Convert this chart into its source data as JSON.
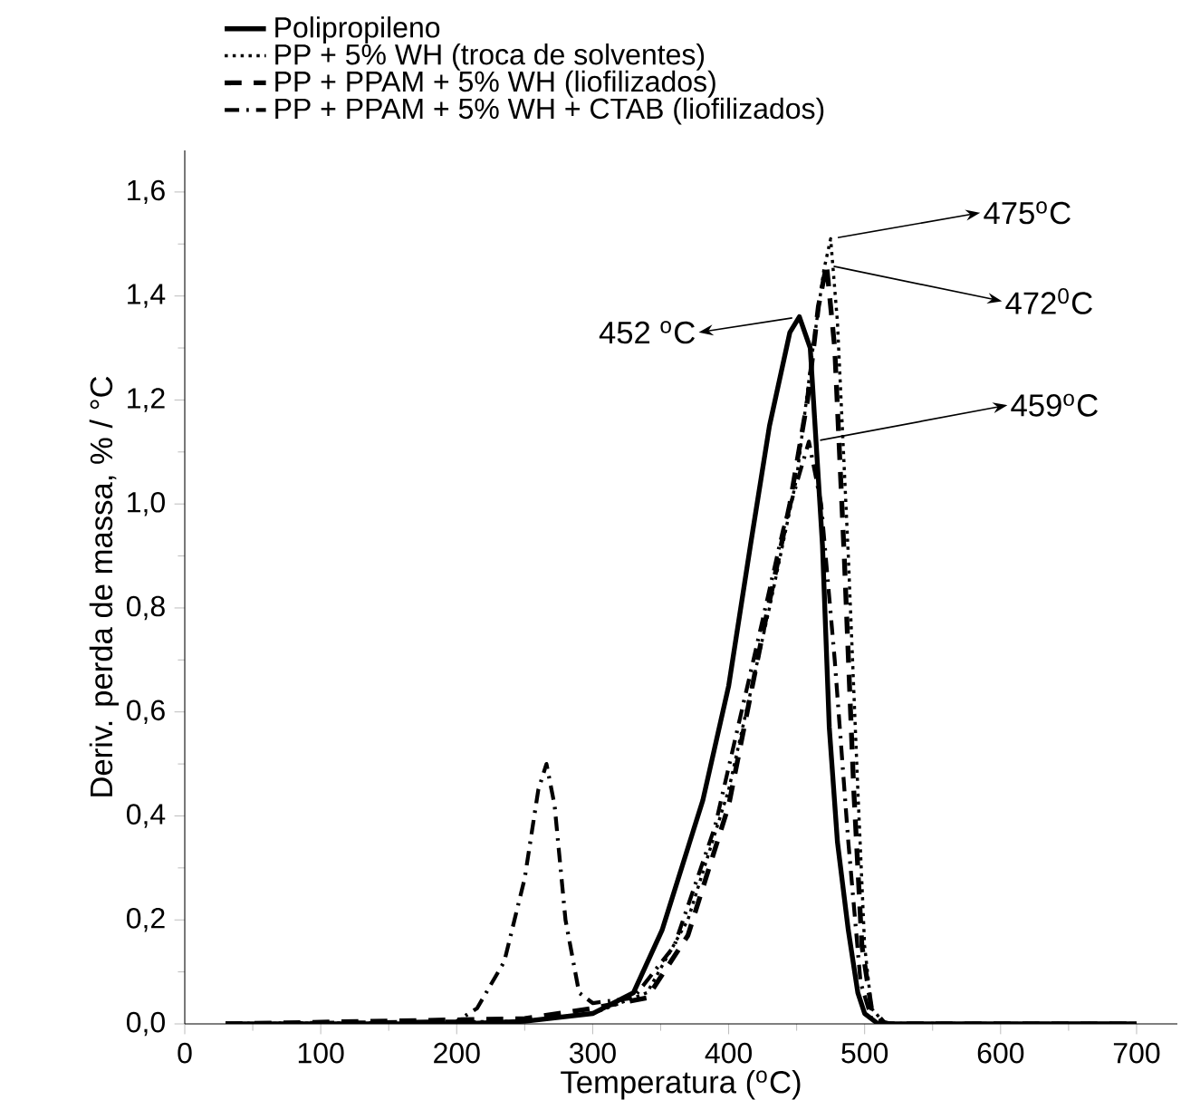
{
  "chart_data": {
    "type": "line",
    "xlabel": "Temperatura ($^{o}$C)",
    "ylabel": "Deriv. perda de massa, % / °C",
    "xlim": [
      0,
      730
    ],
    "xticks": [
      0,
      100,
      200,
      300,
      400,
      500,
      600,
      700
    ],
    "ylim": [
      0,
      1.68
    ],
    "yticks": [
      {
        "value": 0,
        "label": "0,0"
      },
      {
        "value": 0.2,
        "label": "0,2"
      },
      {
        "value": 0.4,
        "label": "0,4"
      },
      {
        "value": 0.6,
        "label": "0,6"
      },
      {
        "value": 0.8,
        "label": "0,8"
      },
      {
        "value": 1.0,
        "label": "1,0"
      },
      {
        "value": 1.2,
        "label": "1,2"
      },
      {
        "value": 1.4,
        "label": "1,4"
      },
      {
        "value": 1.6,
        "label": "1,6"
      }
    ],
    "grid": false,
    "legend": "top left",
    "marker": "none",
    "series": [
      {
        "name": "Polipropileno",
        "color": "#000000",
        "line_style": "solid",
        "x": [
          30,
          200,
          250,
          300,
          330,
          351,
          381,
          400,
          416,
          430,
          445,
          452,
          460,
          469,
          474,
          480,
          488,
          495,
          500,
          510,
          700
        ],
        "values": [
          0,
          0,
          0.005,
          0.02,
          0.06,
          0.18,
          0.43,
          0.65,
          0.92,
          1.15,
          1.33,
          1.36,
          1.3,
          0.92,
          0.57,
          0.35,
          0.18,
          0.06,
          0.02,
          0,
          0
        ]
      },
      {
        "name": "PP + 5% WH (troca de solventes)",
        "color": "#000000",
        "line_style": "dotted",
        "x": [
          30,
          250,
          300,
          340,
          370,
          400,
          430,
          450,
          462,
          470,
          475,
          480,
          488,
          495,
          500,
          505,
          515,
          700
        ],
        "values": [
          0,
          0.005,
          0.02,
          0.06,
          0.2,
          0.45,
          0.8,
          1.05,
          1.3,
          1.45,
          1.51,
          1.35,
          0.9,
          0.45,
          0.15,
          0.03,
          0,
          0
        ]
      },
      {
        "name": "PP + PPAM + 5% WH (liofilizados)",
        "color": "#000000",
        "line_style": "dashed",
        "x": [
          30,
          250,
          300,
          340,
          370,
          400,
          425,
          445,
          458,
          466,
          472,
          478,
          485,
          492,
          498,
          505,
          515,
          700
        ],
        "values": [
          0,
          0.01,
          0.03,
          0.05,
          0.17,
          0.42,
          0.75,
          1.0,
          1.2,
          1.38,
          1.46,
          1.3,
          0.9,
          0.45,
          0.15,
          0.03,
          0,
          0
        ]
      },
      {
        "name": "PP + PPAM + 5% WH + CTAB (liofilizados)",
        "color": "#000000",
        "line_style": "dashdot",
        "x": [
          30,
          200,
          215,
          235,
          250,
          260,
          266,
          272,
          280,
          290,
          300,
          330,
          360,
          390,
          420,
          440,
          459,
          468,
          478,
          488,
          497,
          505,
          520,
          700
        ],
        "values": [
          0,
          0.005,
          0.03,
          0.12,
          0.28,
          0.45,
          0.5,
          0.42,
          0.2,
          0.06,
          0.04,
          0.05,
          0.15,
          0.38,
          0.72,
          0.95,
          1.12,
          1.0,
          0.7,
          0.35,
          0.08,
          0.01,
          0,
          0
        ]
      }
    ],
    "annotations": [
      {
        "text": "452 $^{o}$C",
        "x": 452,
        "y": 1.36
      },
      {
        "text": "459$^{o}$C",
        "x": 462,
        "y": 1.12
      },
      {
        "text": "472$^{0}$C",
        "x": 472,
        "y": 1.46
      },
      {
        "text": "475$^{o}$C",
        "x": 475,
        "y": 1.51
      }
    ]
  }
}
